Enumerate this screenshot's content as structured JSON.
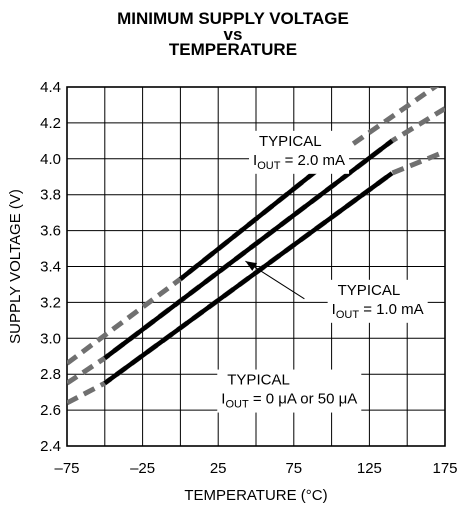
{
  "chart_data": {
    "type": "line",
    "title_lines": [
      "MINIMUM SUPPLY VOLTAGE",
      "vs",
      "TEMPERATURE"
    ],
    "xlabel": "TEMPERATURE (°C)",
    "ylabel": "SUPPLY VOLTAGE (V)",
    "xlim": [
      -75,
      175
    ],
    "ylim": [
      2.4,
      4.4
    ],
    "x_ticks": [
      -75,
      -50,
      -25,
      0,
      25,
      50,
      75,
      100,
      125,
      150,
      175
    ],
    "x_tick_labels": [
      "–75",
      "",
      "–25",
      "",
      "25",
      "",
      "75",
      "",
      "125",
      "",
      "175"
    ],
    "y_ticks": [
      2.4,
      2.6,
      2.8,
      3.0,
      3.2,
      3.4,
      3.6,
      3.8,
      4.0,
      4.2,
      4.4
    ],
    "y_tick_labels": [
      "2.4",
      "2.6",
      "2.8",
      "3.0",
      "3.2",
      "3.4",
      "3.6",
      "3.8",
      "4.0",
      "4.2",
      "4.4"
    ],
    "grid": true,
    "series": [
      {
        "name": "TYPICAL IOUT = 2.0 mA",
        "solid": [
          [
            0,
            3.33
          ],
          [
            100,
            4.0
          ]
        ],
        "dashed": [
          [
            -75,
            2.86
          ],
          [
            0,
            3.33
          ],
          [
            100,
            4.0
          ],
          [
            175,
            4.44
          ]
        ]
      },
      {
        "name": "TYPICAL IOUT = 1.0 mA",
        "solid": [
          [
            -50,
            2.89
          ],
          [
            140,
            4.1
          ]
        ],
        "dashed": [
          [
            -75,
            2.75
          ],
          [
            -50,
            2.89
          ],
          [
            140,
            4.1
          ],
          [
            175,
            4.28
          ]
        ]
      },
      {
        "name": "TYPICAL IOUT = 0 μA or 50 μA",
        "solid": [
          [
            -50,
            2.75
          ],
          [
            140,
            3.92
          ]
        ],
        "dashed": [
          [
            -75,
            2.64
          ],
          [
            -50,
            2.75
          ],
          [
            140,
            3.92
          ],
          [
            175,
            4.04
          ]
        ]
      }
    ],
    "annotations": [
      {
        "line1": "TYPICAL",
        "line2_main": "I",
        "line2_sub": "OUT",
        "line2_rest": " = 2.0 mA",
        "at": [
          52,
          4.05
        ]
      },
      {
        "line1": "TYPICAL",
        "line2_main": "I",
        "line2_sub": "OUT",
        "line2_rest": " = 1.0 mA",
        "at": [
          104,
          3.22
        ]
      },
      {
        "line1": "TYPICAL",
        "line2_main": "I",
        "line2_sub": "OUT",
        "line2_rest": " = 0 μA or 50 μA",
        "at": [
          31,
          2.72
        ]
      }
    ],
    "arrow": {
      "from": [
        82,
        3.22
      ],
      "to": [
        43,
        3.43
      ]
    },
    "colors": {
      "solid": "#000000",
      "dashed": "#707070",
      "grid": "#000000"
    }
  }
}
